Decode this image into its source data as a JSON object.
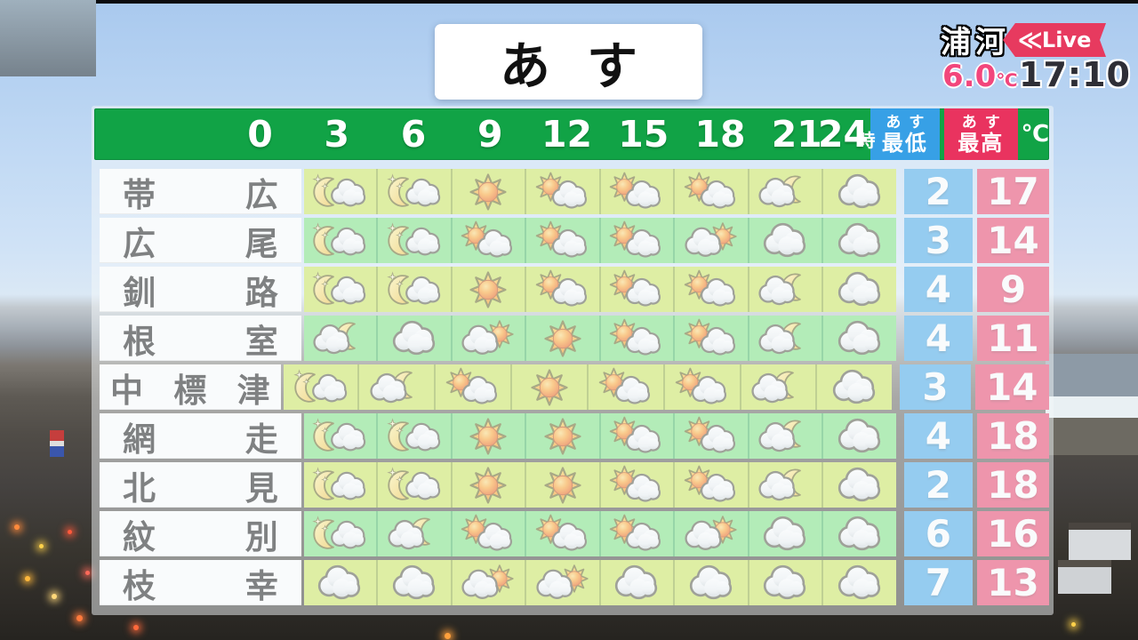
{
  "chart_data": {
    "type": "table",
    "title": "あす",
    "hour_ticks": [
      0,
      3,
      6,
      9,
      12,
      15,
      18,
      21,
      24
    ],
    "hour_unit": "時",
    "temp_unit": "℃",
    "low_label": "あす最低",
    "high_label": "あす最高",
    "cities": [
      "帯広",
      "広尾",
      "釧路",
      "根室",
      "中標津",
      "網走",
      "北見",
      "紋別",
      "枝幸"
    ],
    "weather_icons": [
      [
        "moon-cloud",
        "moon-cloud",
        "sun",
        "sun-cloud",
        "sun-cloud",
        "sun-cloud",
        "cloud-moon",
        "cloud"
      ],
      [
        "moon-cloud",
        "moon-cloud",
        "sun-cloud",
        "sun-cloud",
        "sun-cloud",
        "cloud-sun",
        "cloud",
        "cloud"
      ],
      [
        "moon-cloud",
        "moon-cloud",
        "sun",
        "sun-cloud",
        "sun-cloud",
        "sun-cloud",
        "cloud-moon",
        "cloud"
      ],
      [
        "cloud-moon",
        "cloud",
        "cloud-sun",
        "sun",
        "sun-cloud",
        "sun-cloud",
        "cloud-moon",
        "cloud"
      ],
      [
        "moon-cloud",
        "cloud-moon",
        "sun-cloud",
        "sun",
        "sun-cloud",
        "sun-cloud",
        "cloud-moon",
        "cloud"
      ],
      [
        "moon-cloud",
        "moon-cloud",
        "sun",
        "sun",
        "sun-cloud",
        "sun-cloud",
        "cloud-moon",
        "cloud"
      ],
      [
        "moon-cloud",
        "moon-cloud",
        "sun",
        "sun",
        "sun-cloud",
        "sun-cloud",
        "cloud-moon",
        "cloud"
      ],
      [
        "moon-cloud",
        "cloud-moon",
        "sun-cloud",
        "sun-cloud",
        "sun-cloud",
        "cloud-sun",
        "cloud",
        "cloud"
      ],
      [
        "cloud",
        "cloud",
        "cloud-sun",
        "cloud-sun",
        "cloud",
        "cloud",
        "cloud",
        "cloud"
      ]
    ],
    "low_temps": [
      2,
      3,
      4,
      4,
      3,
      4,
      2,
      6,
      7
    ],
    "high_temps": [
      17,
      14,
      9,
      11,
      14,
      18,
      18,
      16,
      13
    ]
  },
  "title": {
    "text": "あす"
  },
  "live": {
    "location": "浦河",
    "chevrons": "≪",
    "badge": "Live",
    "temp": "6.0",
    "temp_unit": "℃",
    "time": "17:10"
  },
  "header": {
    "hours": [
      "0",
      "3",
      "6",
      "9",
      "12",
      "15",
      "18",
      "21",
      "24"
    ],
    "hour_unit": "時",
    "low": {
      "line1": "あす",
      "line2": "最低"
    },
    "high": {
      "line1": "あす",
      "line2": "最高"
    },
    "temp_unit": "℃"
  },
  "table": {
    "rows": [
      {
        "city": "帯広",
        "icons": [
          "moon-cloud",
          "moon-cloud",
          "sun",
          "sun-cloud",
          "sun-cloud",
          "sun-cloud",
          "cloud-moon",
          "cloud"
        ],
        "low": "2",
        "high": "17"
      },
      {
        "city": "広尾",
        "icons": [
          "moon-cloud",
          "moon-cloud",
          "sun-cloud",
          "sun-cloud",
          "sun-cloud",
          "cloud-sun",
          "cloud",
          "cloud"
        ],
        "low": "3",
        "high": "14"
      },
      {
        "city": "釧路",
        "icons": [
          "moon-cloud",
          "moon-cloud",
          "sun",
          "sun-cloud",
          "sun-cloud",
          "sun-cloud",
          "cloud-moon",
          "cloud"
        ],
        "low": "4",
        "high": "9"
      },
      {
        "city": "根室",
        "icons": [
          "cloud-moon",
          "cloud",
          "cloud-sun",
          "sun",
          "sun-cloud",
          "sun-cloud",
          "cloud-moon",
          "cloud"
        ],
        "low": "4",
        "high": "11"
      },
      {
        "city": "中標津",
        "icons": [
          "moon-cloud",
          "cloud-moon",
          "sun-cloud",
          "sun",
          "sun-cloud",
          "sun-cloud",
          "cloud-moon",
          "cloud"
        ],
        "low": "3",
        "high": "14"
      },
      {
        "city": "網走",
        "icons": [
          "moon-cloud",
          "moon-cloud",
          "sun",
          "sun",
          "sun-cloud",
          "sun-cloud",
          "cloud-moon",
          "cloud"
        ],
        "low": "4",
        "high": "18"
      },
      {
        "city": "北見",
        "icons": [
          "moon-cloud",
          "moon-cloud",
          "sun",
          "sun",
          "sun-cloud",
          "sun-cloud",
          "cloud-moon",
          "cloud"
        ],
        "low": "2",
        "high": "18"
      },
      {
        "city": "紋別",
        "icons": [
          "moon-cloud",
          "cloud-moon",
          "sun-cloud",
          "sun-cloud",
          "sun-cloud",
          "cloud-sun",
          "cloud",
          "cloud"
        ],
        "low": "6",
        "high": "16"
      },
      {
        "city": "枝幸",
        "icons": [
          "cloud",
          "cloud",
          "cloud-sun",
          "cloud-sun",
          "cloud",
          "cloud",
          "cloud",
          "cloud"
        ],
        "low": "7",
        "high": "13"
      }
    ]
  },
  "colors": {
    "header_green": "#11a346",
    "cell_yellow_green": "#c8e44f",
    "cell_green": "#72e077",
    "low_blue": "#37a0e6",
    "high_red": "#e9335f",
    "badge_pink": "#e73a5f",
    "live_temp_pink": "#f2467c"
  }
}
